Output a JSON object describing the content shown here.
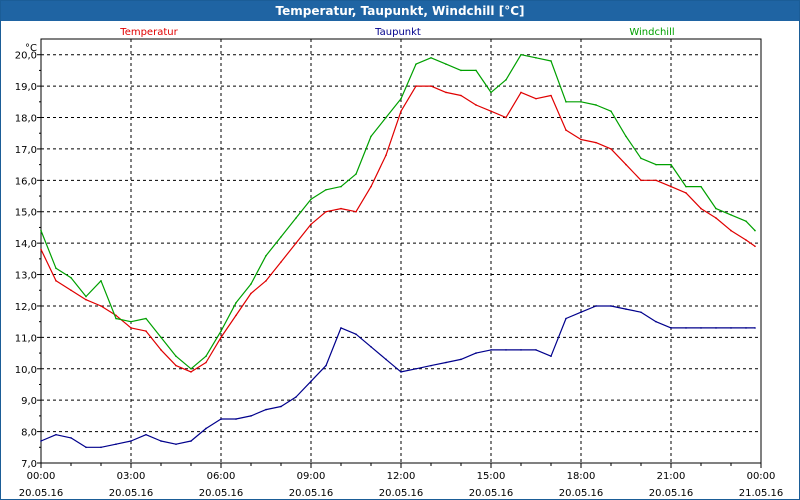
{
  "window": {
    "title": "Temperatur, Taupunkt, Windchill [°C]"
  },
  "chart_data": {
    "type": "line",
    "title": "Temperatur, Taupunkt, Windchill [°C]",
    "ylabel": "°C",
    "ylim": [
      7.0,
      20.5
    ],
    "xlim": [
      0,
      24
    ],
    "grid": true,
    "legend_position": "top",
    "y_ticks": [
      "7,0",
      "8,0",
      "9,0",
      "10,0",
      "11,0",
      "12,0",
      "13,0",
      "14,0",
      "15,0",
      "16,0",
      "17,0",
      "18,0",
      "19,0",
      "20,0"
    ],
    "x_ticks": [
      {
        "time": "00:00",
        "date": "20.05.16"
      },
      {
        "time": "03:00",
        "date": "20.05.16"
      },
      {
        "time": "06:00",
        "date": "20.05.16"
      },
      {
        "time": "09:00",
        "date": "20.05.16"
      },
      {
        "time": "12:00",
        "date": "20.05.16"
      },
      {
        "time": "15:00",
        "date": "20.05.16"
      },
      {
        "time": "18:00",
        "date": "20.05.16"
      },
      {
        "time": "21:00",
        "date": "20.05.16"
      },
      {
        "time": "00:00",
        "date": "21.05.16"
      }
    ],
    "series": [
      {
        "name": "Temperatur",
        "color": "#e00000",
        "x": [
          0,
          0.5,
          1,
          1.5,
          2,
          2.5,
          3,
          3.5,
          4,
          4.5,
          5,
          5.5,
          6,
          6.5,
          7,
          7.5,
          8,
          8.5,
          9,
          9.5,
          10,
          10.5,
          11,
          11.5,
          12,
          12.5,
          13,
          13.5,
          14,
          14.5,
          15,
          15.5,
          16,
          16.5,
          17,
          17.5,
          18,
          18.5,
          19,
          19.5,
          20,
          20.5,
          21,
          21.5,
          22,
          22.5,
          23,
          23.5,
          23.8
        ],
        "values": [
          13.8,
          12.8,
          12.5,
          12.2,
          12.0,
          11.7,
          11.3,
          11.2,
          10.6,
          10.1,
          9.9,
          10.2,
          11.0,
          11.7,
          12.4,
          12.8,
          13.4,
          14.0,
          14.6,
          15.0,
          15.1,
          15.0,
          15.8,
          16.8,
          18.2,
          19.0,
          19.0,
          18.8,
          18.7,
          18.4,
          18.2,
          18.0,
          18.8,
          18.6,
          18.7,
          17.6,
          17.3,
          17.2,
          17.0,
          16.5,
          16.0,
          16.0,
          15.8,
          15.6,
          15.1,
          14.8,
          14.4,
          14.1,
          13.9
        ]
      },
      {
        "name": "Taupunkt",
        "color": "#00008c",
        "x": [
          0,
          0.5,
          1,
          1.5,
          2,
          2.5,
          3,
          3.5,
          4,
          4.5,
          5,
          5.5,
          6,
          6.5,
          7,
          7.5,
          8,
          8.5,
          9,
          9.5,
          10,
          10.5,
          11,
          11.5,
          12,
          12.5,
          13,
          13.5,
          14,
          14.5,
          15,
          15.5,
          16,
          16.5,
          17,
          17.5,
          18,
          18.5,
          19,
          19.5,
          20,
          20.5,
          21,
          21.5,
          22,
          22.5,
          23,
          23.5,
          23.8
        ],
        "values": [
          7.7,
          7.9,
          7.8,
          7.5,
          7.5,
          7.6,
          7.7,
          7.9,
          7.7,
          7.6,
          7.7,
          8.1,
          8.4,
          8.4,
          8.5,
          8.7,
          8.8,
          9.1,
          9.6,
          10.1,
          11.3,
          11.1,
          10.7,
          10.3,
          9.9,
          10.0,
          10.1,
          10.2,
          10.3,
          10.5,
          10.6,
          10.6,
          10.6,
          10.6,
          10.4,
          11.6,
          11.8,
          12.0,
          12.0,
          11.9,
          11.8,
          11.5,
          11.3,
          11.3,
          11.3,
          11.3,
          11.3,
          11.3,
          11.3
        ]
      },
      {
        "name": "Windchill",
        "color": "#00a000",
        "x": [
          0,
          0.5,
          1,
          1.5,
          2,
          2.5,
          3,
          3.5,
          4,
          4.5,
          5,
          5.5,
          6,
          6.5,
          7,
          7.5,
          8,
          8.5,
          9,
          9.5,
          10,
          10.5,
          11,
          11.5,
          12,
          12.5,
          13,
          13.5,
          14,
          14.5,
          15,
          15.5,
          16,
          16.5,
          17,
          17.5,
          18,
          18.5,
          19,
          19.5,
          20,
          20.5,
          21,
          21.5,
          22,
          22.5,
          23,
          23.5,
          23.8
        ],
        "values": [
          14.4,
          13.2,
          12.9,
          12.3,
          12.8,
          11.6,
          11.5,
          11.6,
          11.0,
          10.4,
          10.0,
          10.4,
          11.2,
          12.1,
          12.7,
          13.6,
          14.2,
          14.8,
          15.4,
          15.7,
          15.8,
          16.2,
          17.4,
          18.0,
          18.6,
          19.7,
          19.9,
          19.7,
          19.5,
          19.5,
          18.8,
          19.2,
          20.0,
          19.9,
          19.8,
          18.5,
          18.5,
          18.4,
          18.2,
          17.4,
          16.7,
          16.5,
          16.5,
          15.8,
          15.8,
          15.1,
          14.9,
          14.7,
          14.4
        ]
      }
    ]
  }
}
